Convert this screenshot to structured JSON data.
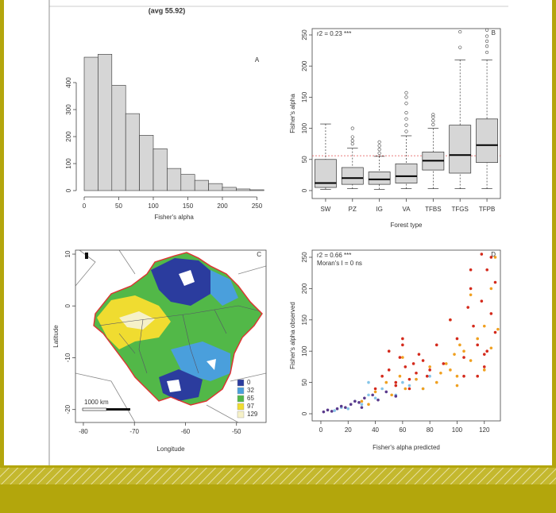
{
  "chart_data": [
    {
      "type": "histogram",
      "label": "A",
      "title": "(avg 55.92)",
      "xlabel": "Fisher's alpha",
      "bins": [
        0,
        20,
        40,
        60,
        80,
        100,
        120,
        140,
        160,
        180,
        200,
        220,
        240,
        260
      ],
      "counts": [
        494,
        505,
        390,
        285,
        205,
        155,
        82,
        60,
        38,
        26,
        12,
        6,
        3
      ],
      "color": "#d6d6d6",
      "xlim": [
        0,
        260
      ],
      "xticks": [
        0,
        50,
        100,
        150,
        200,
        250
      ],
      "ylim": [
        0,
        500
      ],
      "yticks": [
        0,
        100,
        200,
        300,
        400
      ]
    },
    {
      "type": "box",
      "label": "B",
      "annotation": "r2 = 0.23 ***",
      "xlabel": "Forest type",
      "ylabel": "Fisher's alpha",
      "categories": [
        "SW",
        "PZ",
        "IG",
        "VA",
        "TFBS",
        "TFGS",
        "TFPB"
      ],
      "boxes": [
        {
          "min": 2,
          "q1": 5,
          "median": 12,
          "q3": 50,
          "max": 107,
          "outliers": []
        },
        {
          "min": 3,
          "q1": 10,
          "median": 20,
          "q3": 37,
          "max": 68,
          "outliers": [
            75,
            80,
            86,
            100
          ]
        },
        {
          "min": 2,
          "q1": 10,
          "median": 18,
          "q3": 30,
          "max": 55,
          "outliers": [
            60,
            66,
            72,
            78
          ]
        },
        {
          "min": 3,
          "q1": 12,
          "median": 23,
          "q3": 43,
          "max": 88,
          "outliers": [
            95,
            105,
            115,
            125,
            140,
            150,
            157
          ]
        },
        {
          "min": 3,
          "q1": 33,
          "median": 48,
          "q3": 62,
          "max": 100,
          "outliers": [
            106,
            112,
            118,
            122
          ]
        },
        {
          "min": 3,
          "q1": 28,
          "median": 57,
          "q3": 105,
          "max": 210,
          "outliers": [
            230,
            255
          ]
        },
        {
          "min": 3,
          "q1": 45,
          "median": 73,
          "q3": 115,
          "max": 210,
          "outliers": [
            222,
            232,
            240,
            248,
            258
          ]
        }
      ],
      "color": "#d6d6d6",
      "reference_line": 55.92,
      "reference_color": "#e05050",
      "ylim": [
        -12.8,
        260.2
      ],
      "yticks": [
        0,
        50,
        100,
        150,
        200,
        250
      ]
    },
    {
      "type": "map",
      "label": "C",
      "xlabel": "Longitude",
      "ylabel": "Latitude",
      "scale_bar": "1000 km",
      "legend": [
        {
          "label": "0",
          "color": "#2b3c9e"
        },
        {
          "label": "32",
          "color": "#4a9fdc"
        },
        {
          "label": "65",
          "color": "#52b848"
        },
        {
          "label": "97",
          "color": "#f0dc30"
        },
        {
          "label": "129",
          "color": "#f6f1c8"
        }
      ],
      "xlim": [
        -81.55,
        -44.2
      ],
      "xticks": [
        -80,
        -70,
        -60,
        -50
      ],
      "ylim": [
        -22.5,
        10.77
      ],
      "yticks": [
        10,
        0,
        -10,
        -20
      ]
    },
    {
      "type": "scatter",
      "label": "D",
      "annotations": [
        "r2 = 0.66 ***",
        "Moran's I = 0 ns"
      ],
      "xlabel": "Fisher's alpha predicted",
      "ylabel": "Fisher's alpha observed",
      "xlim": [
        -6.4,
        131.8
      ],
      "xticks": [
        0,
        20,
        40,
        60,
        80,
        100,
        120
      ],
      "ylim": [
        -11.4,
        261.4
      ],
      "yticks": [
        0,
        50,
        100,
        150,
        200,
        250
      ],
      "series": [
        {
          "color": "#86c5e8",
          "x": [
            10,
            15,
            20,
            25,
            30,
            35,
            40,
            45,
            55,
            60,
            65,
            70,
            75,
            80,
            35
          ],
          "y": [
            5,
            10,
            8,
            20,
            15,
            30,
            25,
            40,
            30,
            50,
            45,
            55,
            40,
            60,
            50
          ]
        },
        {
          "color": "#5a3a8c",
          "x": [
            2,
            5,
            8,
            12,
            15,
            18,
            22,
            25,
            28,
            32,
            38,
            42,
            48,
            55,
            30
          ],
          "y": [
            3,
            6,
            4,
            8,
            12,
            10,
            15,
            20,
            18,
            25,
            30,
            22,
            35,
            28,
            10
          ]
        },
        {
          "color": "#f0a020",
          "x": [
            30,
            40,
            48,
            52,
            58,
            62,
            70,
            75,
            80,
            88,
            92,
            95,
            98,
            100,
            102,
            105,
            110,
            115,
            120,
            125,
            128,
            35,
            60,
            85,
            95,
            100,
            110,
            120,
            125,
            130
          ],
          "y": [
            20,
            35,
            50,
            30,
            60,
            40,
            55,
            40,
            75,
            65,
            80,
            70,
            95,
            60,
            110,
            100,
            85,
            120,
            140,
            105,
            250,
            15,
            90,
            50,
            150,
            45,
            190,
            70,
            200,
            135
          ]
        },
        {
          "color": "#d42a1c",
          "x": [
            45,
            50,
            55,
            58,
            60,
            62,
            65,
            68,
            70,
            72,
            75,
            78,
            80,
            85,
            90,
            95,
            100,
            105,
            108,
            110,
            112,
            115,
            118,
            120,
            122,
            125,
            128,
            60,
            55,
            65,
            115,
            120,
            125,
            105,
            110,
            118,
            122,
            128,
            50,
            40
          ],
          "y": [
            60,
            70,
            45,
            90,
            110,
            75,
            55,
            80,
            65,
            95,
            85,
            60,
            70,
            110,
            80,
            150,
            120,
            90,
            170,
            200,
            140,
            110,
            180,
            95,
            230,
            160,
            130,
            120,
            50,
            40,
            60,
            75,
            250,
            60,
            230,
            255,
            100,
            210,
            100,
            40
          ]
        }
      ]
    }
  ]
}
